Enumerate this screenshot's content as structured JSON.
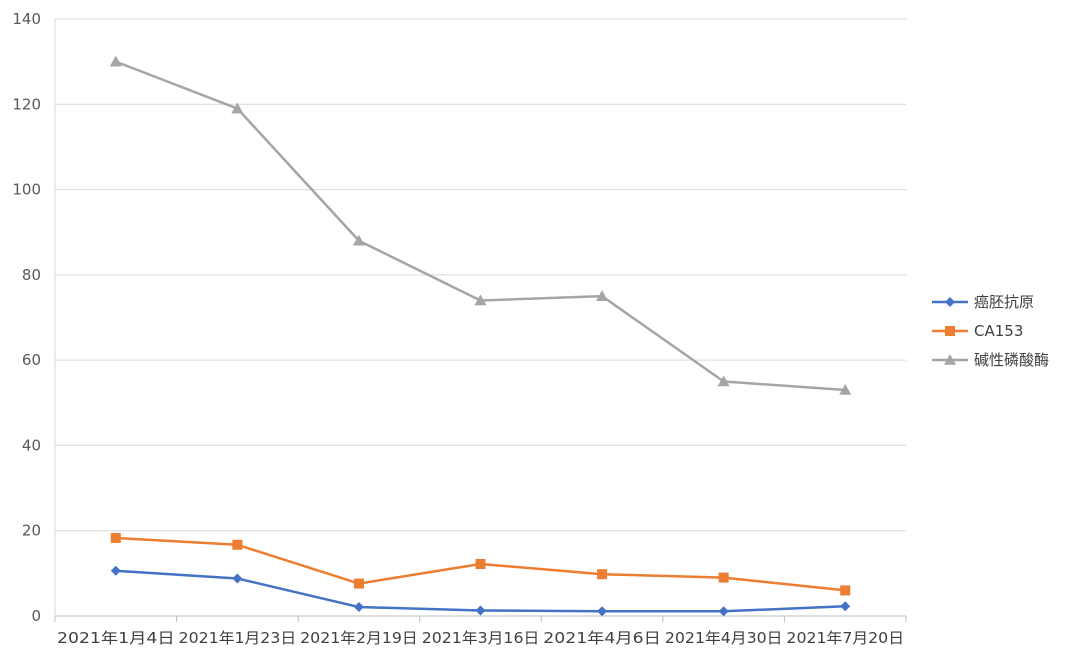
{
  "chart_data": {
    "type": "line",
    "title": "",
    "xlabel": "",
    "ylabel": "",
    "categories": [
      "2021年1月4日",
      "2021年1月23日",
      "2021年2月19日",
      "2021年3月16日",
      "2021年4月6日",
      "2021年4月30日",
      "2021年7月20日"
    ],
    "ylim": [
      0,
      140
    ],
    "yticks": [
      0,
      20,
      40,
      60,
      80,
      100,
      120,
      140
    ],
    "grid": true,
    "legend_position": "right",
    "series": [
      {
        "name": "癌胚抗原",
        "color": "#4472C4",
        "marker": "diamond",
        "values": [
          10.6,
          8.8,
          2.1,
          1.3,
          1.1,
          1.1,
          2.3
        ]
      },
      {
        "name": "CA153",
        "color": "#ED7D31",
        "marker": "square",
        "values": [
          18.3,
          16.7,
          7.6,
          12.2,
          9.8,
          9.0,
          6.0
        ]
      },
      {
        "name": "碱性磷酸酶",
        "color": "#A5A5A5",
        "marker": "triangle",
        "values": [
          130,
          119,
          88,
          74,
          75,
          55,
          53
        ]
      }
    ]
  }
}
